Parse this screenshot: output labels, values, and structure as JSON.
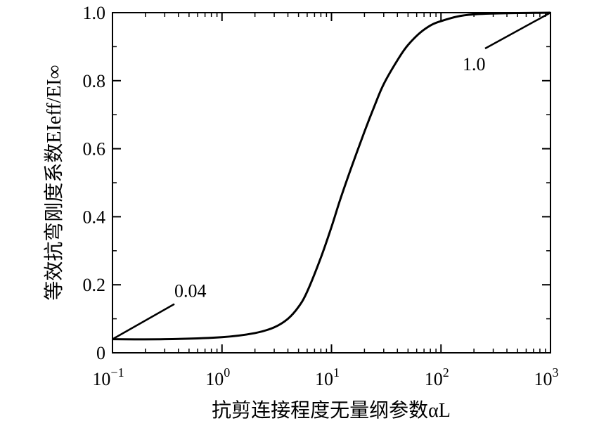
{
  "chart_data": {
    "type": "line",
    "title": "",
    "xlabel": "抗剪连接程度无量纲参数αL",
    "ylabel": "等效抗弯刚度系数EIeff/EI∞",
    "xscale": "log",
    "xlim": [
      0.1,
      1000
    ],
    "ylim": [
      0,
      1.0
    ],
    "grid": false,
    "x_ticks": [
      {
        "base": "10",
        "exp": "−1"
      },
      {
        "base": "10",
        "exp": "0"
      },
      {
        "base": "10",
        "exp": "1"
      },
      {
        "base": "10",
        "exp": "2"
      },
      {
        "base": "10",
        "exp": "3"
      }
    ],
    "y_ticks": [
      "0",
      "0.2",
      "0.4",
      "0.6",
      "0.8",
      "1.0"
    ],
    "series": [
      {
        "color": "#000000",
        "x": [
          0.1,
          0.3,
          1,
          2,
          3,
          4,
          5,
          6,
          8,
          10,
          12,
          15,
          20,
          25,
          30,
          40,
          50,
          70,
          100,
          200,
          1000
        ],
        "y": [
          0.04,
          0.04,
          0.046,
          0.058,
          0.075,
          0.1,
          0.135,
          0.18,
          0.28,
          0.37,
          0.45,
          0.54,
          0.65,
          0.73,
          0.79,
          0.86,
          0.905,
          0.95,
          0.975,
          0.995,
          1.0
        ]
      }
    ],
    "annotations": [
      {
        "text": "0.04",
        "target": [
          0.1,
          0.04
        ]
      },
      {
        "text": "1.0",
        "target": [
          1000,
          1.0
        ]
      }
    ]
  }
}
